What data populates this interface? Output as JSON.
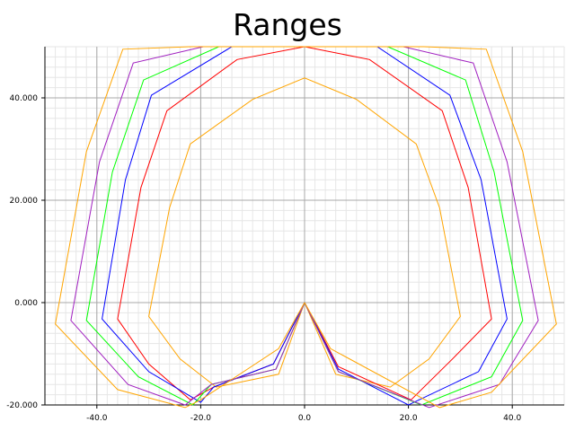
{
  "chart_data": {
    "type": "line",
    "title": "Ranges",
    "xlabel": "",
    "ylabel": "",
    "xlim": [
      -50,
      50
    ],
    "ylim": [
      -20,
      50
    ],
    "grid": true,
    "legend": "none",
    "x_ticks": [
      {
        "value": -40,
        "label": "-40.0"
      },
      {
        "value": -20,
        "label": "-20.0"
      },
      {
        "value": 0,
        "label": "0.0"
      },
      {
        "value": 20,
        "label": "20.0"
      },
      {
        "value": 40,
        "label": "40.0"
      }
    ],
    "y_ticks": [
      {
        "value": -20,
        "label": "-20.000"
      },
      {
        "value": 0,
        "label": "0.000"
      },
      {
        "value": 20,
        "label": "20.000"
      },
      {
        "value": 40,
        "label": "40.000"
      }
    ],
    "series": [
      {
        "color": "#ffa500",
        "points": [
          [
            0,
            0
          ],
          [
            -5,
            -14
          ],
          [
            -17,
            -16.5
          ],
          [
            -24,
            -11
          ],
          [
            -30,
            -2.7
          ],
          [
            -26,
            18.5
          ],
          [
            -22,
            31
          ],
          [
            -10,
            39.7
          ],
          [
            0,
            43.9
          ],
          [
            10,
            39.7
          ],
          [
            21.5,
            31
          ],
          [
            26,
            18.5
          ],
          [
            30,
            -2.7
          ],
          [
            24,
            -11
          ],
          [
            16.5,
            -16.5
          ],
          [
            6,
            -14
          ],
          [
            0,
            0
          ]
        ]
      },
      {
        "color": "#ff0000",
        "points": [
          [
            0,
            0
          ],
          [
            -6,
            -12
          ],
          [
            -17.5,
            -16.5
          ],
          [
            -22,
            -19
          ],
          [
            -30,
            -12
          ],
          [
            -36,
            -3.2
          ],
          [
            -31.5,
            22.5
          ],
          [
            -26.5,
            37.5
          ],
          [
            -13,
            47.5
          ],
          [
            0,
            50
          ],
          [
            12.5,
            47.5
          ],
          [
            26.5,
            37.5
          ],
          [
            31.5,
            22.5
          ],
          [
            36,
            -3.2
          ],
          [
            28.5,
            -11
          ],
          [
            20.5,
            -19
          ],
          [
            6.5,
            -12.5
          ],
          [
            0,
            0
          ]
        ]
      },
      {
        "color": "#0000ff",
        "points": [
          [
            0,
            0
          ],
          [
            -6,
            -12
          ],
          [
            -17.5,
            -16.5
          ],
          [
            -20,
            -19.5
          ],
          [
            -30,
            -13.5
          ],
          [
            -39,
            -3.2
          ],
          [
            -34.5,
            24
          ],
          [
            -29.5,
            40.5
          ],
          [
            -14,
            50
          ],
          [
            14,
            50
          ],
          [
            28,
            40.5
          ],
          [
            34,
            24
          ],
          [
            39,
            -3.2
          ],
          [
            33.5,
            -13.5
          ],
          [
            20,
            -20
          ],
          [
            6.5,
            -13
          ],
          [
            0,
            0
          ]
        ]
      },
      {
        "color": "#00ff00",
        "points": [
          [
            0,
            0
          ],
          [
            -5.5,
            -13
          ],
          [
            -18,
            -16
          ],
          [
            -21.5,
            -20
          ],
          [
            -32,
            -14.5
          ],
          [
            -42,
            -3.5
          ],
          [
            -37,
            25.5
          ],
          [
            -31,
            43.5
          ],
          [
            -16.5,
            50
          ],
          [
            16,
            50
          ],
          [
            31,
            43.5
          ],
          [
            36.5,
            25.5
          ],
          [
            42,
            -3.5
          ],
          [
            36,
            -14.5
          ],
          [
            22.5,
            -20
          ],
          [
            6.5,
            -13.5
          ],
          [
            0,
            0
          ]
        ]
      },
      {
        "color": "#a020c0",
        "points": [
          [
            0,
            0
          ],
          [
            -5.5,
            -13
          ],
          [
            -18,
            -16
          ],
          [
            -23,
            -20
          ],
          [
            -34,
            -16
          ],
          [
            -45,
            -3.5
          ],
          [
            -39.5,
            27.5
          ],
          [
            -33,
            46.8
          ],
          [
            -19.5,
            50
          ],
          [
            19,
            50
          ],
          [
            32.5,
            46.8
          ],
          [
            39,
            27.5
          ],
          [
            45,
            -3.5
          ],
          [
            37.5,
            -16
          ],
          [
            24,
            -20.5
          ],
          [
            6.5,
            -13.5
          ],
          [
            0,
            0
          ]
        ]
      },
      {
        "color": "#ffa500",
        "points": [
          [
            0,
            0
          ],
          [
            -5,
            -9
          ],
          [
            -20,
            -19
          ],
          [
            -23,
            -20.5
          ],
          [
            -36,
            -17
          ],
          [
            -48,
            -4.2
          ],
          [
            -42,
            29.5
          ],
          [
            -35,
            49.5
          ],
          [
            -22,
            50
          ],
          [
            23,
            50
          ],
          [
            35,
            49.5
          ],
          [
            42,
            29.5
          ],
          [
            48.5,
            -4.2
          ],
          [
            36,
            -17.5
          ],
          [
            26,
            -20.5
          ],
          [
            5,
            -9
          ],
          [
            0,
            0
          ]
        ]
      }
    ]
  }
}
